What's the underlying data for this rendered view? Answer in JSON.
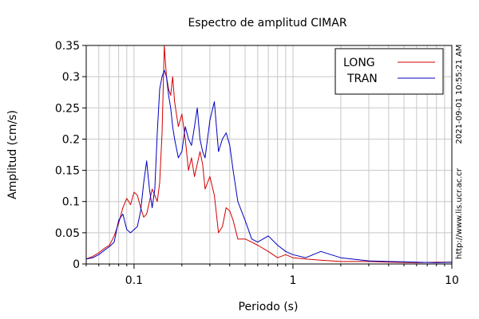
{
  "chart_data": {
    "type": "line",
    "title": "Espectro de amplitud CIMAR",
    "xlabel": "Periodo (s)",
    "ylabel": "Amplitud (cm/s)",
    "xscale": "log",
    "xlim": [
      0.05,
      10
    ],
    "ylim": [
      0,
      0.35
    ],
    "x_ticks": [
      {
        "value": 0.1,
        "label": "0.1"
      },
      {
        "value": 1,
        "label": "1"
      },
      {
        "value": 10,
        "label": "10"
      }
    ],
    "y_ticks": [
      {
        "value": 0,
        "label": "0"
      },
      {
        "value": 0.05,
        "label": "0.05"
      },
      {
        "value": 0.1,
        "label": "0.1"
      },
      {
        "value": 0.15,
        "label": "0.15"
      },
      {
        "value": 0.2,
        "label": "0.2"
      },
      {
        "value": 0.25,
        "label": "0.25"
      },
      {
        "value": 0.3,
        "label": "0.3"
      },
      {
        "value": 0.35,
        "label": "0.35"
      }
    ],
    "grid": true,
    "legend_position": "top-right",
    "series": [
      {
        "name": "LONG",
        "color": "#d40000",
        "x": [
          0.05,
          0.055,
          0.06,
          0.065,
          0.07,
          0.075,
          0.08,
          0.085,
          0.09,
          0.095,
          0.1,
          0.105,
          0.11,
          0.115,
          0.12,
          0.125,
          0.13,
          0.135,
          0.14,
          0.145,
          0.15,
          0.155,
          0.16,
          0.165,
          0.17,
          0.175,
          0.18,
          0.19,
          0.2,
          0.21,
          0.22,
          0.23,
          0.24,
          0.25,
          0.26,
          0.27,
          0.28,
          0.3,
          0.32,
          0.34,
          0.36,
          0.38,
          0.4,
          0.42,
          0.45,
          0.5,
          0.55,
          0.6,
          0.7,
          0.8,
          0.9,
          1.0,
          1.2,
          1.5,
          2.0,
          3.0,
          4.0,
          6.0,
          8.0,
          10.0
        ],
        "y": [
          0.008,
          0.012,
          0.018,
          0.025,
          0.03,
          0.045,
          0.065,
          0.09,
          0.105,
          0.095,
          0.115,
          0.11,
          0.09,
          0.075,
          0.08,
          0.1,
          0.12,
          0.11,
          0.1,
          0.13,
          0.21,
          0.35,
          0.3,
          0.28,
          0.27,
          0.3,
          0.26,
          0.22,
          0.24,
          0.2,
          0.15,
          0.17,
          0.14,
          0.16,
          0.18,
          0.16,
          0.12,
          0.14,
          0.11,
          0.05,
          0.06,
          0.09,
          0.085,
          0.07,
          0.04,
          0.04,
          0.035,
          0.03,
          0.02,
          0.01,
          0.015,
          0.01,
          0.008,
          0.006,
          0.004,
          0.004,
          0.003,
          0.002,
          0.003,
          0.003
        ]
      },
      {
        "name": "TRAN",
        "color": "#0000c0",
        "x": [
          0.05,
          0.055,
          0.06,
          0.065,
          0.07,
          0.075,
          0.08,
          0.085,
          0.09,
          0.095,
          0.1,
          0.105,
          0.11,
          0.115,
          0.12,
          0.125,
          0.13,
          0.135,
          0.14,
          0.145,
          0.15,
          0.155,
          0.16,
          0.165,
          0.17,
          0.175,
          0.18,
          0.19,
          0.2,
          0.21,
          0.22,
          0.23,
          0.24,
          0.25,
          0.26,
          0.27,
          0.28,
          0.3,
          0.32,
          0.34,
          0.36,
          0.38,
          0.4,
          0.42,
          0.45,
          0.5,
          0.55,
          0.6,
          0.7,
          0.8,
          0.9,
          1.0,
          1.2,
          1.5,
          2.0,
          3.0,
          4.0,
          6.0,
          8.0,
          10.0
        ],
        "y": [
          0.008,
          0.01,
          0.015,
          0.022,
          0.028,
          0.035,
          0.07,
          0.08,
          0.055,
          0.05,
          0.055,
          0.06,
          0.085,
          0.13,
          0.165,
          0.12,
          0.09,
          0.12,
          0.21,
          0.28,
          0.3,
          0.31,
          0.3,
          0.27,
          0.25,
          0.22,
          0.2,
          0.17,
          0.18,
          0.22,
          0.2,
          0.19,
          0.22,
          0.25,
          0.2,
          0.18,
          0.17,
          0.23,
          0.26,
          0.18,
          0.2,
          0.21,
          0.19,
          0.15,
          0.1,
          0.07,
          0.04,
          0.035,
          0.045,
          0.03,
          0.02,
          0.015,
          0.01,
          0.02,
          0.01,
          0.005,
          0.004,
          0.003,
          0.002,
          0.003
        ]
      }
    ]
  },
  "side_text": {
    "timestamp": "2021-09-01 10:55:21 AM",
    "url": "http://www.lis.ucr.ac.cr"
  }
}
